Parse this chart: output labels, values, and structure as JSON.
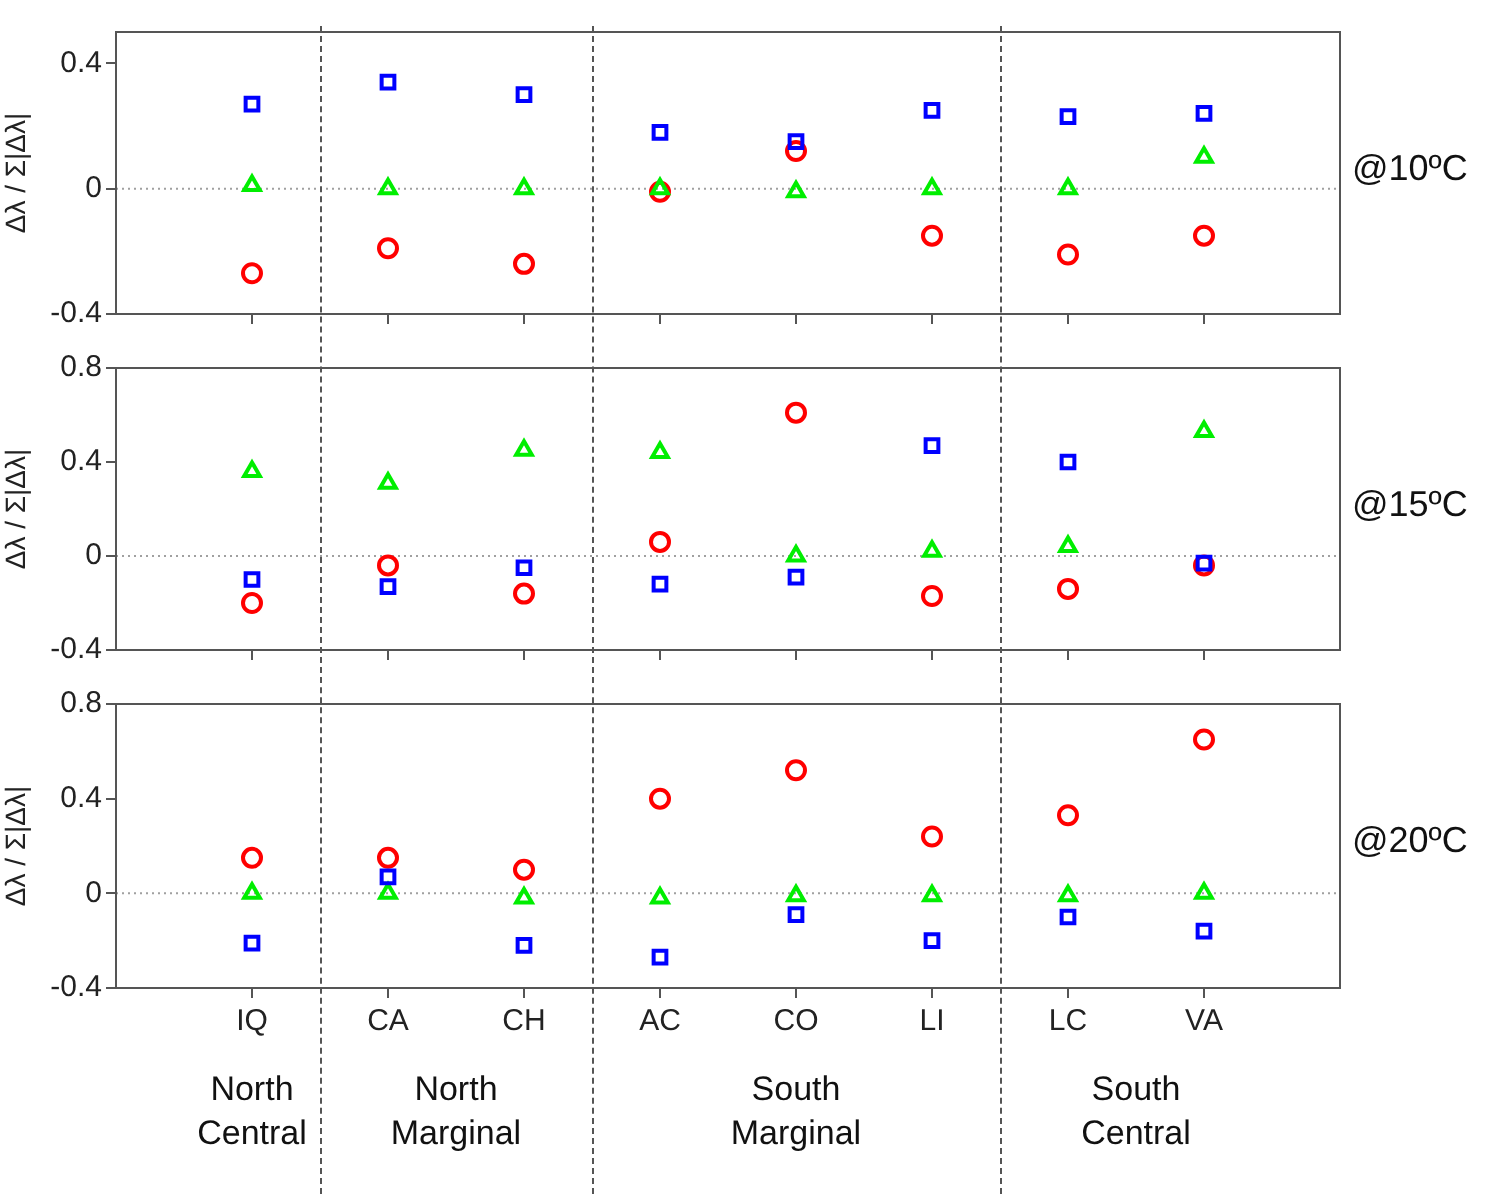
{
  "chart_data": [
    {
      "type": "scatter",
      "title": "@10ºC",
      "ylabel": "Δλ / Σ|Δλ|",
      "categories": [
        null,
        null,
        null,
        null,
        null,
        null,
        null,
        null
      ],
      "ylim": [
        -0.4,
        0.5
      ],
      "yticks": [
        -0.4,
        0,
        0.4
      ],
      "tick_labels": "y",
      "legend": false,
      "grid": false,
      "ref_lines": [
        {
          "axis": "y",
          "value": 0,
          "color": "#a0a0a0",
          "line_style": "dotted"
        }
      ],
      "series": [
        {
          "color": "#0000ff",
          "marker": "square",
          "values": [
            0.27,
            0.34,
            0.3,
            0.18,
            0.15,
            0.25,
            0.23,
            0.24
          ]
        },
        {
          "color": "#00ee00",
          "marker": "triangle",
          "values": [
            0.01,
            0,
            0,
            0,
            -0.01,
            0,
            0,
            0.1
          ]
        },
        {
          "color": "#ff0000",
          "marker": "circle",
          "values": [
            -0.27,
            -0.19,
            -0.24,
            -0.01,
            0.12,
            -0.15,
            -0.21,
            -0.15
          ]
        }
      ]
    },
    {
      "type": "scatter",
      "title": "@15ºC",
      "ylabel": "Δλ / Σ|Δλ|",
      "categories": [
        null,
        null,
        null,
        null,
        null,
        null,
        null,
        null
      ],
      "ylim": [
        -0.4,
        0.8
      ],
      "yticks": [
        -0.4,
        0,
        0.4,
        0.8
      ],
      "tick_labels": "y",
      "legend": false,
      "grid": false,
      "ref_lines": [
        {
          "axis": "y",
          "value": 0,
          "color": "#a0a0a0",
          "line_style": "dotted"
        }
      ],
      "series": [
        {
          "color": "#0000ff",
          "marker": "square",
          "values": [
            -0.1,
            -0.13,
            -0.05,
            -0.12,
            -0.09,
            0.47,
            0.4,
            -0.03
          ]
        },
        {
          "color": "#00ee00",
          "marker": "triangle",
          "values": [
            0.36,
            0.31,
            0.45,
            0.44,
            0,
            0.02,
            0.04,
            0.53
          ]
        },
        {
          "color": "#ff0000",
          "marker": "circle",
          "values": [
            -0.2,
            -0.04,
            -0.16,
            0.06,
            0.61,
            -0.17,
            -0.14,
            -0.04
          ]
        }
      ]
    },
    {
      "type": "scatter",
      "title": "@20ºC",
      "ylabel": "Δλ / Σ|Δλ|",
      "categories": [
        "IQ",
        "CA",
        "CH",
        "AC",
        "CO",
        "LI",
        "LC",
        "VA"
      ],
      "ylim": [
        -0.4,
        0.8
      ],
      "yticks": [
        -0.4,
        0,
        0.4,
        0.8
      ],
      "legend": false,
      "grid": false,
      "ref_lines": [
        {
          "axis": "y",
          "value": 0,
          "color": "#a0a0a0",
          "line_style": "dotted"
        }
      ],
      "annotations": [
        "North Central",
        "North Marginal",
        "South Marginal",
        "South Central"
      ],
      "series": [
        {
          "color": "#0000ff",
          "marker": "square",
          "values": [
            -0.21,
            0.07,
            -0.22,
            -0.27,
            -0.09,
            -0.2,
            -0.1,
            -0.16
          ]
        },
        {
          "color": "#00ee00",
          "marker": "triangle",
          "values": [
            0,
            0,
            -0.02,
            -0.02,
            -0.01,
            -0.01,
            -0.01,
            0
          ]
        },
        {
          "color": "#ff0000",
          "marker": "circle",
          "values": [
            0.15,
            0.15,
            0.1,
            0.4,
            0.52,
            0.24,
            0.33,
            0.65
          ]
        }
      ]
    }
  ]
}
